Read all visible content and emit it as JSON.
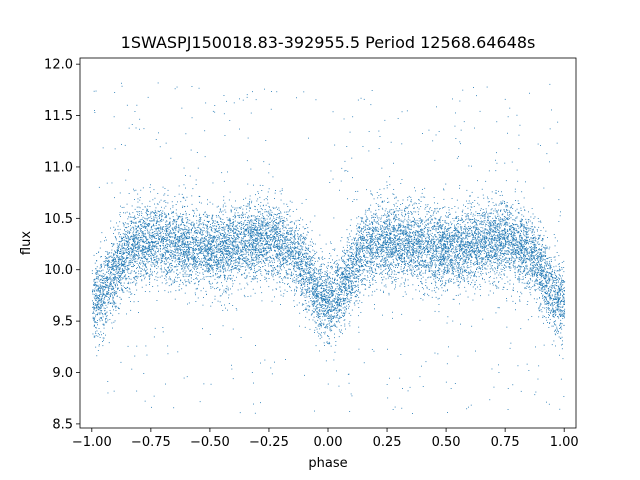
{
  "chart_data": {
    "type": "scatter",
    "title": "1SWASPJ150018.83-392955.5 Period 12568.64648s",
    "xlabel": "phase",
    "ylabel": "flux",
    "xlim": [
      -1.05,
      1.05
    ],
    "ylim": [
      8.46,
      12.06
    ],
    "x_ticks": [
      -1.0,
      -0.75,
      -0.5,
      -0.25,
      0.0,
      0.25,
      0.5,
      0.75,
      1.0
    ],
    "x_tick_labels": [
      "−1.00",
      "−0.75",
      "−0.50",
      "−0.25",
      "0.00",
      "0.25",
      "0.50",
      "0.75",
      "1.00"
    ],
    "y_ticks": [
      8.5,
      9.0,
      9.5,
      10.0,
      10.5,
      11.0,
      11.5,
      12.0
    ],
    "y_tick_labels": [
      "8.5",
      "9.0",
      "9.5",
      "10.0",
      "10.5",
      "11.0",
      "11.5",
      "12.0"
    ],
    "grid": false,
    "point_color": "#1f77b4",
    "series_description": {
      "phase_range": [
        -1.0,
        1.0
      ],
      "flux_range": [
        8.6,
        11.85
      ],
      "baseline_flux": 10.3,
      "dip_centers_phase": [
        -1.0,
        0.0,
        1.0
      ],
      "dip_min_flux": 9.7,
      "secondary_dip_phases": [
        -0.5,
        0.5
      ],
      "secondary_dip_flux": 10.2
    }
  }
}
